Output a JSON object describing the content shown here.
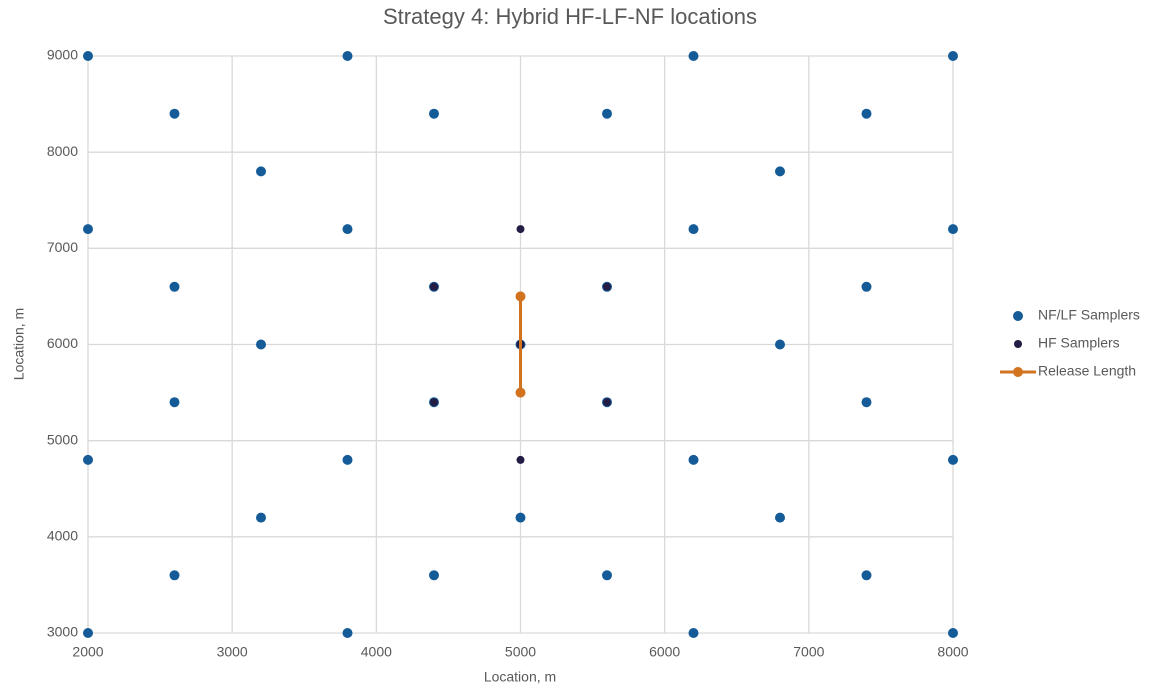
{
  "chart_data": {
    "type": "scatter",
    "title": "Strategy 4: Hybrid HF-LF-NF locations",
    "x_label": "Location, m",
    "y_label": "Location, m",
    "xlim": [
      2000,
      8000
    ],
    "xticks": [
      2000,
      3000,
      4000,
      5000,
      6000,
      7000,
      8000
    ],
    "ylim": [
      3000,
      9000
    ],
    "yticks": [
      3000,
      4000,
      5000,
      6000,
      7000,
      8000,
      9000
    ],
    "grid": true,
    "legend": "right",
    "series": [
      {
        "name": "NF/LF Samplers",
        "color": "#155b97",
        "kind": "points",
        "x": [
          2000,
          3800,
          6200,
          8000,
          2600,
          4400,
          5600,
          7400,
          3200,
          6800,
          2000,
          3800,
          6200,
          8000,
          2600,
          4400,
          5600,
          7400,
          3200,
          5000,
          6800,
          2600,
          4400,
          5600,
          7400,
          2000,
          3800,
          6200,
          8000,
          3200,
          5000,
          6800,
          2600,
          4400,
          5600,
          7400,
          2000,
          3800,
          6200,
          8000
        ],
        "values": [
          9000,
          9000,
          9000,
          9000,
          8400,
          8400,
          8400,
          8400,
          7800,
          7800,
          7200,
          7200,
          7200,
          7200,
          6600,
          6600,
          6600,
          6600,
          6000,
          6000,
          6000,
          5400,
          5400,
          5400,
          5400,
          4800,
          4800,
          4800,
          4800,
          4200,
          4200,
          4200,
          3600,
          3600,
          3600,
          3600,
          3000,
          3000,
          3000,
          3000
        ]
      },
      {
        "name": "HF Samplers",
        "color": "#231c44",
        "kind": "points",
        "x": [
          5000,
          4400,
          5600,
          5000,
          4400,
          5600,
          5000
        ],
        "values": [
          7200,
          6600,
          6600,
          6000,
          5400,
          5400,
          4800
        ]
      },
      {
        "name": "Release Length",
        "color": "#d2731f",
        "kind": "line",
        "x": [
          5000,
          5000
        ],
        "values": [
          5500,
          6500
        ]
      }
    ]
  }
}
